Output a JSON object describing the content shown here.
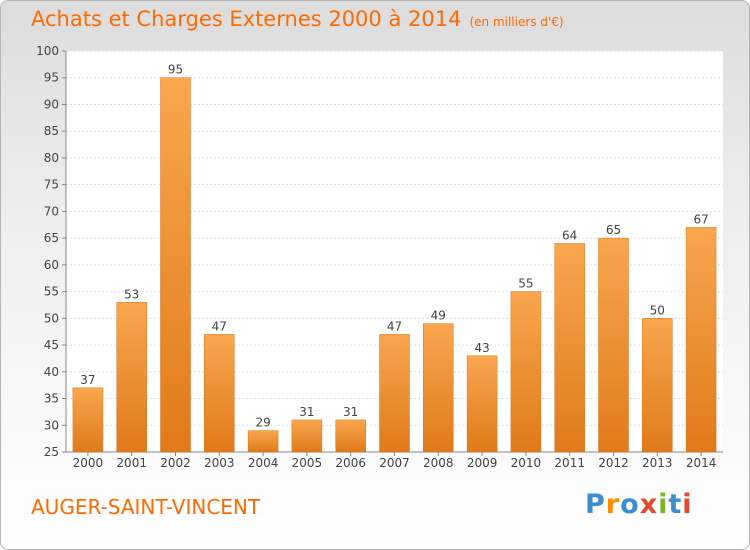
{
  "header": {
    "title": "Achats et Charges Externes 2000 à 2014",
    "unit": "(en milliers d'€)"
  },
  "commune": "AUGER-SAINT-VINCENT",
  "logo": {
    "text": "Proxiti",
    "colors": [
      "#3b8fd0",
      "#ff8c00",
      "#3b8fd0",
      "#e24a2c",
      "#78b828",
      "#3b8fd0",
      "#e24a2c"
    ]
  },
  "colors": {
    "accent": "#ff6a00",
    "bar_top": "#f9a64f",
    "bar_bottom": "#e07a1a"
  },
  "chart_data": {
    "type": "bar",
    "title": "Achats et Charges Externes 2000 à 2014",
    "subtitle": "(en milliers d'€)",
    "categories": [
      "2000",
      "2001",
      "2002",
      "2003",
      "2004",
      "2005",
      "2006",
      "2007",
      "2008",
      "2009",
      "2010",
      "2011",
      "2012",
      "2013",
      "2014"
    ],
    "values": [
      37,
      53,
      95,
      47,
      29,
      31,
      31,
      47,
      49,
      43,
      55,
      64,
      65,
      50,
      67
    ],
    "ylim": [
      25,
      100
    ],
    "yticks": [
      25,
      30,
      35,
      40,
      45,
      50,
      55,
      60,
      65,
      70,
      75,
      80,
      85,
      90,
      95,
      100
    ],
    "grid": true,
    "xlabel": "",
    "ylabel": ""
  }
}
